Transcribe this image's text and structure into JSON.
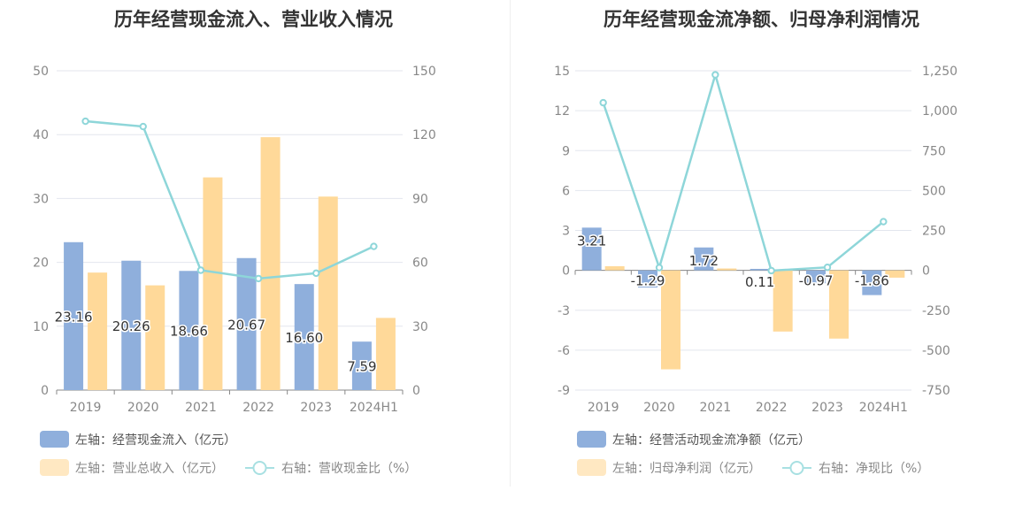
{
  "chart_data": [
    {
      "type": "bar",
      "title": "历年经营现金流入、营业收入情况",
      "categories": [
        "2019",
        "2020",
        "2021",
        "2022",
        "2023",
        "2024H1"
      ],
      "left_axis": {
        "min": 0,
        "max": 50,
        "ticks": [
          "0",
          "10",
          "20",
          "30",
          "40",
          "50"
        ]
      },
      "right_axis": {
        "min": 0,
        "max": 150,
        "ticks": [
          "0",
          "30",
          "60",
          "90",
          "120",
          "150"
        ]
      },
      "series": [
        {
          "name": "左轴：经营现金流入（亿元）",
          "kind": "bar",
          "axis": "left",
          "color": "#8fafdc",
          "values": [
            23.16,
            20.26,
            18.66,
            20.67,
            16.6,
            7.59
          ],
          "labels": [
            "23.16",
            "20.26",
            "18.66",
            "20.67",
            "16.60",
            "7.59"
          ]
        },
        {
          "name": "左轴：营业总收入（亿元）",
          "kind": "bar",
          "axis": "left",
          "color": "#ffd999",
          "values": [
            18.4,
            16.4,
            33.3,
            39.6,
            30.3,
            11.3
          ]
        },
        {
          "name": "右轴：营收现金比（%）",
          "kind": "line",
          "axis": "right",
          "color": "#8ed6d9",
          "values": [
            126.3,
            123.8,
            56.3,
            52.4,
            54.9,
            67.5
          ]
        }
      ],
      "legend_placement": "bottom-left",
      "grid": true
    },
    {
      "type": "bar",
      "title": "历年经营现金流净额、归母净利润情况",
      "categories": [
        "2019",
        "2020",
        "2021",
        "2022",
        "2023",
        "2024H1"
      ],
      "left_axis": {
        "min": -9,
        "max": 15,
        "ticks": [
          "-9",
          "-6",
          "-3",
          "0",
          "3",
          "6",
          "9",
          "12",
          "15"
        ]
      },
      "right_axis": {
        "min": -750,
        "max": 1250,
        "ticks": [
          "-750",
          "-500",
          "-250",
          "0",
          "250",
          "500",
          "750",
          "1,000",
          "1,250"
        ]
      },
      "series": [
        {
          "name": "左轴：经营活动现金流净额（亿元）",
          "kind": "bar",
          "axis": "left",
          "color": "#8fafdc",
          "values": [
            3.21,
            -1.29,
            1.72,
            0.11,
            -0.97,
            -1.86
          ],
          "labels": [
            "3.21",
            "-1.29",
            "1.72",
            "0.11",
            "-0.97",
            "-1.86"
          ]
        },
        {
          "name": "左轴：归母净利润（亿元）",
          "kind": "bar",
          "axis": "left",
          "color": "#ffd999",
          "values": [
            0.31,
            -7.44,
            0.14,
            -4.6,
            -5.13,
            -0.55
          ]
        },
        {
          "name": "右轴：净现比（%）",
          "kind": "line",
          "axis": "right",
          "color": "#8ed6d9",
          "values": [
            1050,
            17,
            1225,
            -2,
            19,
            305
          ]
        }
      ],
      "legend_placement": "bottom-left",
      "grid": true
    }
  ]
}
